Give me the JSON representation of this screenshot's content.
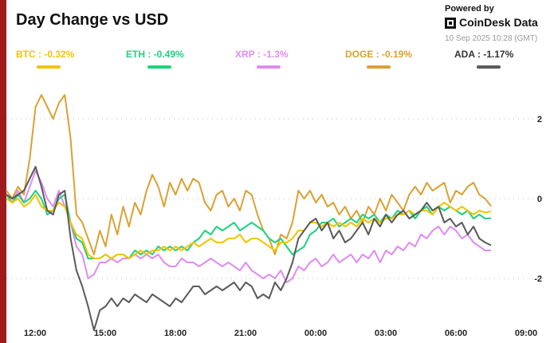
{
  "header": {
    "title": "Day Change vs USD",
    "powered_by": "Powered by",
    "brand": "CoinDesk Data",
    "timestamp": "10 Sep 2025 10:28 (GMT)"
  },
  "colors": {
    "BTC": "#f2c500",
    "ETH": "#1fd27e",
    "XRP": "#e08cf0",
    "DOGE": "#d9a233",
    "ADA": "#5a5a5a",
    "accent_bar": "#9e1b1b"
  },
  "chart_data": {
    "type": "line",
    "title": "Day Change vs USD",
    "xlabel": "",
    "ylabel": "",
    "x_ticks": [
      "12:00",
      "15:00",
      "18:00",
      "21:00",
      "00:00",
      "03:00",
      "06:00",
      "09:00"
    ],
    "y_ticks": [
      2,
      0,
      -2
    ],
    "ylim": [
      -3.4,
      3.2
    ],
    "grid": "dotted horizontal",
    "legend_position": "top",
    "x_hours_from_start": [
      0,
      0.25,
      0.5,
      0.75,
      1,
      1.25,
      1.5,
      1.75,
      2,
      2.25,
      2.5,
      2.75,
      3,
      3.25,
      3.5,
      3.75,
      4,
      4.25,
      4.5,
      4.75,
      5,
      5.25,
      5.5,
      5.75,
      6,
      6.25,
      6.5,
      6.75,
      7,
      7.25,
      7.5,
      7.75,
      8,
      8.25,
      8.5,
      8.75,
      9,
      9.25,
      9.5,
      9.75,
      10,
      10.25,
      10.5,
      10.75,
      11,
      11.25,
      11.5,
      11.75,
      12,
      12.25,
      12.5,
      12.75,
      13,
      13.25,
      13.5,
      13.75,
      14,
      14.25,
      14.5,
      14.75,
      15,
      15.25,
      15.5,
      15.75,
      16,
      16.25,
      16.5,
      16.75,
      17,
      17.25,
      17.5,
      17.75,
      18,
      18.25,
      18.5,
      18.75,
      19,
      19.25,
      19.5,
      19.75,
      20,
      20.25,
      20.5,
      20.75
    ],
    "series": [
      {
        "name": "BTC",
        "legend": "BTC : -0.32%",
        "color": "#f2c500",
        "values": [
          0,
          -0.1,
          0,
          -0.2,
          -0.1,
          0.1,
          -0.2,
          -0.3,
          -0.3,
          -0.1,
          -0.2,
          -0.6,
          -0.9,
          -1,
          -1.4,
          -1.5,
          -1.5,
          -1.4,
          -1.5,
          -1.4,
          -1.4,
          -1.5,
          -1.4,
          -1.3,
          -1.4,
          -1.3,
          -1.3,
          -1.2,
          -1.3,
          -1.2,
          -1.3,
          -1.2,
          -1.1,
          -1.2,
          -1.1,
          -1.0,
          -1.1,
          -1.1,
          -1.0,
          -1.0,
          -0.9,
          -1.1,
          -1.0,
          -1.0,
          -1.1,
          -1.2,
          -1.3,
          -1.1,
          -1.1,
          -1.0,
          -0.8,
          -0.8,
          -0.6,
          -0.6,
          -0.7,
          -0.6,
          -0.7,
          -0.6,
          -0.7,
          -0.6,
          -0.7,
          -0.5,
          -0.6,
          -0.5,
          -0.6,
          -0.5,
          -0.5,
          -0.4,
          -0.4,
          -0.3,
          -0.4,
          -0.3,
          -0.3,
          -0.4,
          -0.2,
          -0.1,
          -0.2,
          -0.3,
          -0.2,
          -0.3,
          -0.4,
          -0.3,
          -0.35,
          -0.32
        ]
      },
      {
        "name": "ETH",
        "legend": "ETH : -0.49%",
        "color": "#1fd27e",
        "values": [
          0.1,
          -0.1,
          0.1,
          -0.1,
          0,
          0.2,
          0,
          -0.4,
          -0.3,
          0,
          0.1,
          -0.6,
          -1,
          -1.1,
          -1.5,
          -1.5,
          -1.5,
          -1.4,
          -1.5,
          -1.4,
          -1.4,
          -1.5,
          -1.3,
          -1.4,
          -1.3,
          -1.4,
          -1.2,
          -1.3,
          -1.2,
          -1.3,
          -1.2,
          -1.3,
          -1.1,
          -1.0,
          -0.8,
          -0.9,
          -0.7,
          -0.8,
          -0.7,
          -0.6,
          -0.8,
          -0.7,
          -0.6,
          -0.7,
          -0.8,
          -1.0,
          -1.1,
          -1.0,
          -1.2,
          -1.4,
          -1.3,
          -1.2,
          -0.9,
          -0.8,
          -0.6,
          -0.6,
          -0.5,
          -0.7,
          -0.6,
          -0.5,
          -0.6,
          -0.4,
          -0.5,
          -0.4,
          -0.6,
          -0.4,
          -0.5,
          -0.3,
          -0.4,
          -0.3,
          -0.5,
          -0.3,
          -0.2,
          -0.4,
          -0.2,
          -0.3,
          -0.2,
          -0.3,
          -0.4,
          -0.3,
          -0.5,
          -0.4,
          -0.5,
          -0.49
        ]
      },
      {
        "name": "XRP",
        "legend": "XRP : -1.3%",
        "color": "#e08cf0",
        "values": [
          0.1,
          -0.1,
          0.2,
          -0.1,
          0.3,
          0.7,
          0.4,
          0,
          -0.2,
          0.2,
          -0.2,
          -0.6,
          -1.2,
          -1.4,
          -2.0,
          -1.9,
          -1.6,
          -1.6,
          -1.5,
          -1.6,
          -1.5,
          -1.5,
          -1.4,
          -1.5,
          -1.4,
          -1.5,
          -1.4,
          -1.6,
          -1.7,
          -1.7,
          -1.5,
          -1.6,
          -1.6,
          -1.7,
          -1.6,
          -1.5,
          -1.6,
          -1.7,
          -1.6,
          -1.7,
          -1.8,
          -1.6,
          -1.8,
          -1.9,
          -2.0,
          -1.9,
          -2.0,
          -1.8,
          -2.1,
          -2.0,
          -1.7,
          -1.8,
          -1.6,
          -1.5,
          -1.7,
          -1.6,
          -1.4,
          -1.6,
          -1.5,
          -1.4,
          -1.6,
          -1.4,
          -1.5,
          -1.3,
          -1.6,
          -1.3,
          -1.4,
          -1.2,
          -1.3,
          -1.1,
          -1.2,
          -0.9,
          -1.0,
          -0.8,
          -0.7,
          -0.9,
          -0.7,
          -0.8,
          -1.0,
          -0.9,
          -1.1,
          -1.2,
          -1.3,
          -1.3
        ]
      },
      {
        "name": "DOGE",
        "legend": "DOGE : -0.19%",
        "color": "#d9a233",
        "values": [
          0.2,
          0.0,
          0.3,
          0.1,
          1,
          2.3,
          2.6,
          2.3,
          2.0,
          2.4,
          2.6,
          1.5,
          -0.4,
          -0.6,
          -1.0,
          -1.4,
          -0.8,
          -1.2,
          -0.4,
          -0.9,
          -0.2,
          -0.7,
          -0.1,
          -0.4,
          0.2,
          0.6,
          0.3,
          -0.2,
          0.4,
          0.1,
          0.5,
          0.2,
          0.5,
          0.4,
          -0.1,
          -0.3,
          0.1,
          0.2,
          -0.2,
          0.0,
          -0.3,
          0.2,
          0.1,
          -0.4,
          -0.8,
          -1.0,
          -1.4,
          -0.9,
          -1.0,
          -0.6,
          0.2,
          0.0,
          0.2,
          -0.1,
          0.1,
          -0.2,
          -0.1,
          -0.4,
          -0.2,
          -0.5,
          -0.3,
          -0.6,
          -0.2,
          -0.4,
          0.0,
          -0.3,
          0.1,
          -0.1,
          -0.3,
          0.1,
          0.3,
          0.1,
          0.4,
          0.2,
          0.3,
          0.4,
          -0.1,
          0.2,
          0.1,
          0.3,
          0.4,
          0.1,
          0.0,
          -0.19
        ]
      },
      {
        "name": "ADA",
        "legend": "ADA : -1.17%",
        "color": "#5a5a5a",
        "values": [
          0.1,
          0,
          0.1,
          0.2,
          0.5,
          0.8,
          0.3,
          -0.3,
          -0.4,
          0.1,
          0.2,
          -1.0,
          -1.8,
          -2.2,
          -2.7,
          -3.3,
          -2.8,
          -2.7,
          -2.5,
          -2.7,
          -2.5,
          -2.6,
          -2.4,
          -2.5,
          -2.6,
          -2.4,
          -2.5,
          -2.6,
          -2.7,
          -2.5,
          -2.6,
          -2.4,
          -2.2,
          -2.2,
          -2.4,
          -2.3,
          -2.2,
          -2.3,
          -2.2,
          -2.1,
          -2.3,
          -2.1,
          -2.2,
          -2.5,
          -2.4,
          -2.5,
          -2.1,
          -2.3,
          -2.0,
          -1.6,
          -1.0,
          -0.8,
          -0.6,
          -0.5,
          -0.8,
          -0.6,
          -1.0,
          -0.8,
          -1.1,
          -1.0,
          -0.8,
          -0.6,
          -0.9,
          -0.5,
          -0.7,
          -0.4,
          -0.6,
          -0.4,
          -0.3,
          -0.5,
          -0.4,
          -0.3,
          -0.1,
          -0.3,
          -0.2,
          -0.6,
          -0.5,
          -0.7,
          -0.6,
          -0.9,
          -0.7,
          -1.0,
          -1.1,
          -1.17
        ]
      }
    ]
  }
}
